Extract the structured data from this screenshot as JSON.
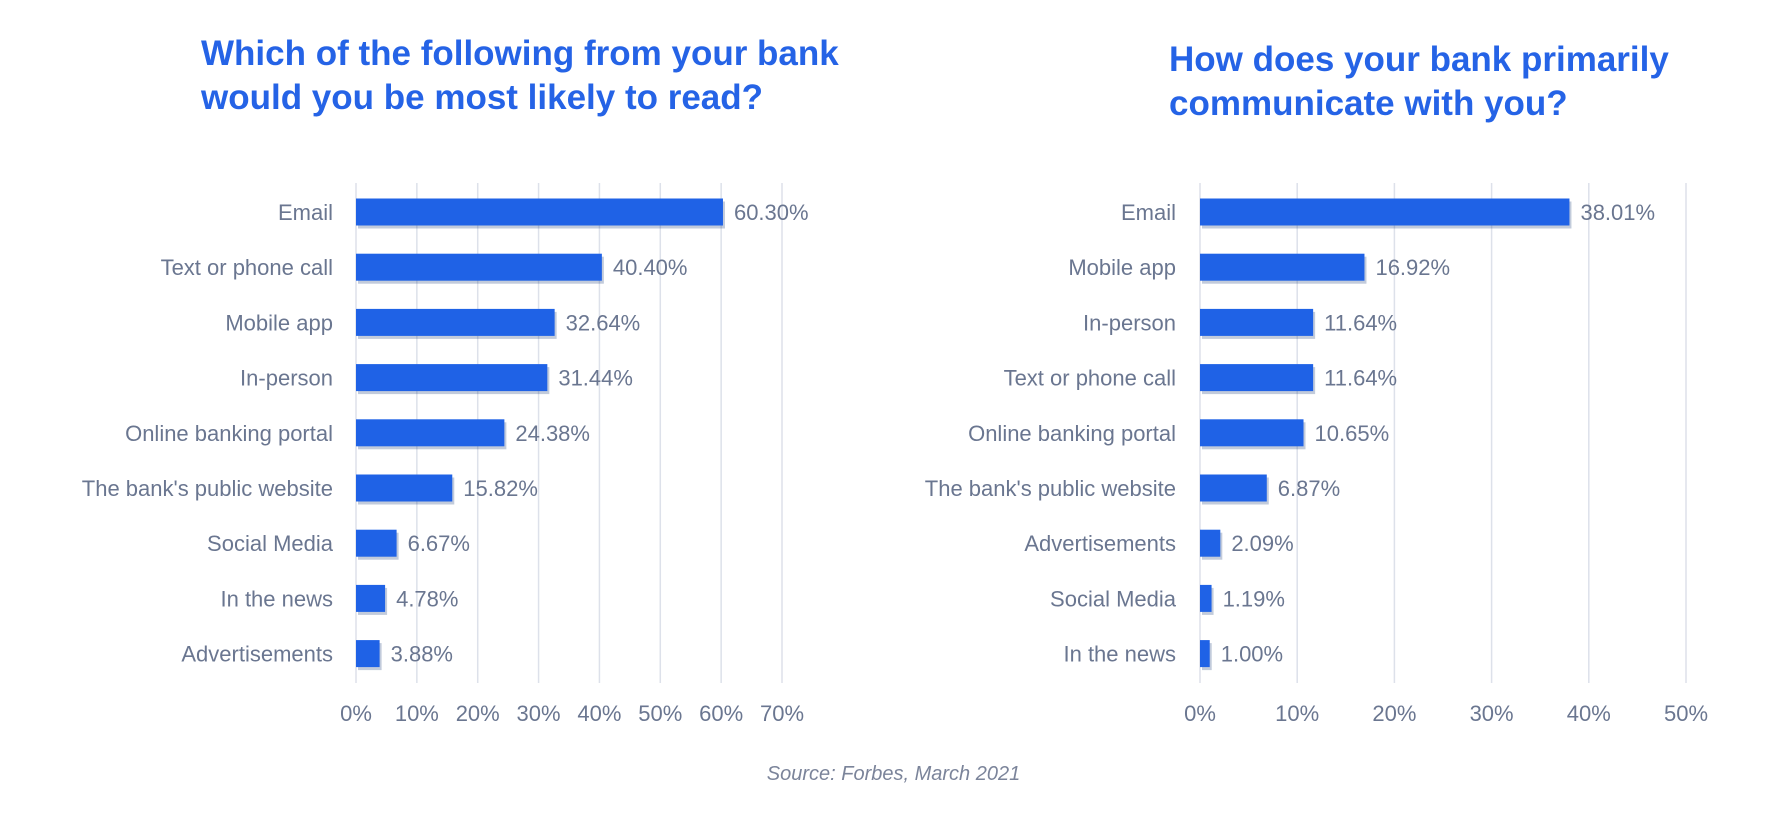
{
  "source": "Source: Forbes, March 2021",
  "colors": {
    "bar": "#1f62e6",
    "title": "#2563e6",
    "label": "#6a7690",
    "grid": "#dde1ea"
  },
  "chart_data": [
    {
      "type": "bar",
      "orientation": "horizontal",
      "title": "Which of the following from your bank\nwould you be most likely to read?",
      "categories": [
        "Email",
        "Text or phone call",
        "Mobile app",
        "In-person",
        "Online banking portal",
        "The bank's public website",
        "Social Media",
        "In the news",
        "Advertisements"
      ],
      "values": [
        60.3,
        40.4,
        32.64,
        31.44,
        24.38,
        15.82,
        6.67,
        4.78,
        3.88
      ],
      "value_labels": [
        "60.30%",
        "40.40%",
        "32.64%",
        "31.44%",
        "24.38%",
        "15.82%",
        "6.67%",
        "4.78%",
        "3.88%"
      ],
      "xlim": [
        0,
        70
      ],
      "xticks": [
        "0%",
        "10%",
        "20%",
        "30%",
        "40%",
        "50%",
        "60%",
        "70%"
      ],
      "grid": true
    },
    {
      "type": "bar",
      "orientation": "horizontal",
      "title": "How does your bank primarily\ncommunicate with you?",
      "categories": [
        "Email",
        "Mobile app",
        "In-person",
        "Text or phone call",
        "Online banking portal",
        "The bank's public website",
        "Advertisements",
        "Social Media",
        "In the news"
      ],
      "values": [
        38.01,
        16.92,
        11.64,
        11.64,
        10.65,
        6.87,
        2.09,
        1.19,
        1.0
      ],
      "value_labels": [
        "38.01%",
        "16.92%",
        "11.64%",
        "11.64%",
        "10.65%",
        "6.87%",
        "2.09%",
        "1.19%",
        "1.00%"
      ],
      "xlim": [
        0,
        50
      ],
      "xticks": [
        "0%",
        "10%",
        "20%",
        "30%",
        "40%",
        "50%"
      ],
      "grid": true
    }
  ]
}
